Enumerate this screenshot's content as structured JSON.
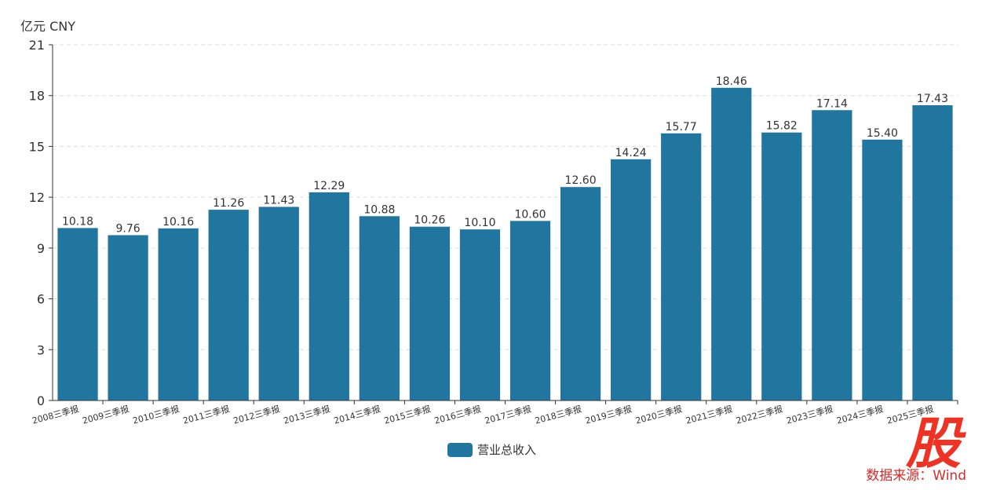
{
  "unit_label": "亿元  CNY",
  "source": "数据来源：Wind",
  "logo_text": "股",
  "colors": {
    "bar": "#21769f",
    "grid": "#dddddd",
    "axis": "#333333",
    "source": "#d92b2b",
    "logo": "#ee3325"
  },
  "chart_data": {
    "type": "bar",
    "categories": [
      "2008三季报",
      "2009三季报",
      "2010三季报",
      "2011三季报",
      "2012三季报",
      "2013三季报",
      "2014三季报",
      "2015三季报",
      "2016三季报",
      "2017三季报",
      "2018三季报",
      "2019三季报",
      "2020三季报",
      "2021三季报",
      "2022三季报",
      "2023三季报",
      "2024三季报",
      "2025三季报"
    ],
    "series": [
      {
        "name": "营业总收入",
        "values": [
          10.18,
          9.76,
          10.16,
          11.26,
          11.43,
          12.29,
          10.88,
          10.26,
          10.1,
          10.6,
          12.6,
          14.24,
          15.77,
          18.46,
          15.82,
          17.14,
          15.4,
          17.43
        ]
      }
    ],
    "ylim": [
      0,
      21
    ],
    "yticks": [
      0,
      3,
      6,
      9,
      12,
      15,
      18,
      21
    ],
    "grid": true,
    "legend_position": "bottom-center"
  }
}
